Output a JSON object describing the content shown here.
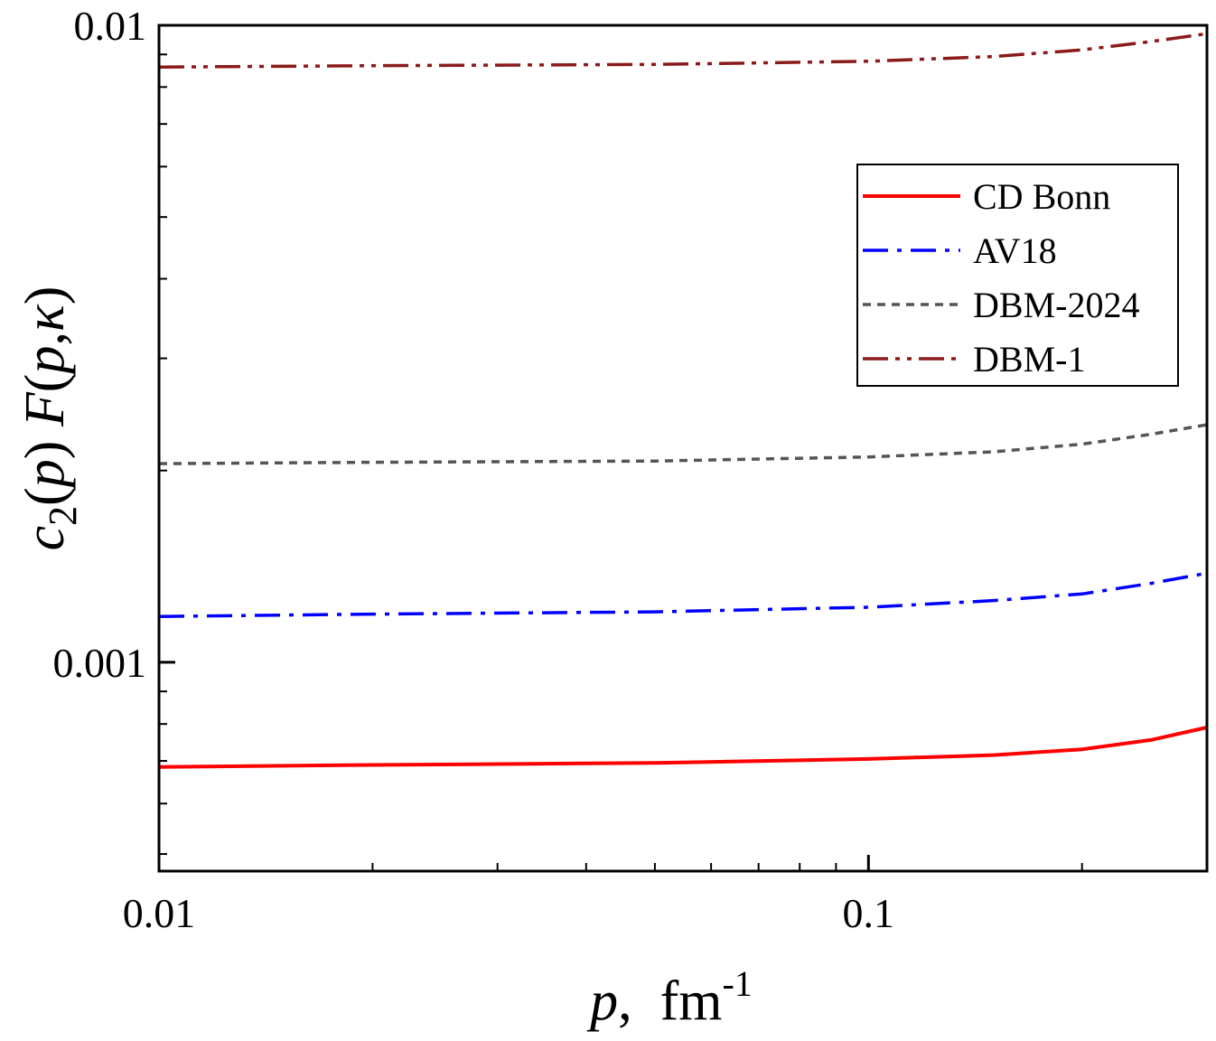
{
  "chart_data": {
    "type": "line",
    "xscale": "log",
    "yscale": "log",
    "xlim": [
      0.01,
      0.3
    ],
    "ylim": [
      0.00047,
      0.01
    ],
    "xticks": [
      {
        "value": 0.01,
        "label": "0.01"
      },
      {
        "value": 0.1,
        "label": "0.1"
      }
    ],
    "yticks": [
      {
        "value": 0.001,
        "label": "0.001"
      },
      {
        "value": 0.01,
        "label": "0.01"
      }
    ],
    "xlabel": {
      "var": "p",
      "sep": ",  ",
      "unit": "fm",
      "exp": "-1"
    },
    "ylabel": {
      "c": "c",
      "sub": "2",
      "p1": "p",
      "F": "F",
      "p2": "p",
      "kappa": "κ"
    },
    "legend_position": "top-right",
    "grid": false,
    "series": [
      {
        "name": "CD Bonn",
        "color": "#ff0000",
        "dash": "solid",
        "x": [
          0.01,
          0.02,
          0.05,
          0.1,
          0.15,
          0.2,
          0.25,
          0.3
        ],
        "y": [
          0.000685,
          0.00069,
          0.000695,
          0.000705,
          0.000715,
          0.00073,
          0.000755,
          0.00079
        ]
      },
      {
        "name": "AV18",
        "color": "#0000ff",
        "dash": "dashdot",
        "x": [
          0.01,
          0.02,
          0.05,
          0.1,
          0.15,
          0.2,
          0.25,
          0.3
        ],
        "y": [
          0.00118,
          0.00119,
          0.0012,
          0.00122,
          0.00125,
          0.00128,
          0.00133,
          0.00138
        ]
      },
      {
        "name": "DBM-2024",
        "color": "#555555",
        "dash": "short-dash",
        "x": [
          0.01,
          0.02,
          0.05,
          0.1,
          0.15,
          0.2,
          0.25,
          0.3
        ],
        "y": [
          0.00205,
          0.00206,
          0.00207,
          0.0021,
          0.00214,
          0.0022,
          0.00228,
          0.00236
        ]
      },
      {
        "name": "DBM-1",
        "color": "#8b1a1a",
        "dash": "dashdotdot",
        "x": [
          0.01,
          0.02,
          0.05,
          0.1,
          0.15,
          0.2,
          0.25,
          0.3
        ],
        "y": [
          0.0086,
          0.00864,
          0.00868,
          0.00878,
          0.00893,
          0.00915,
          0.00943,
          0.0097
        ]
      }
    ]
  }
}
